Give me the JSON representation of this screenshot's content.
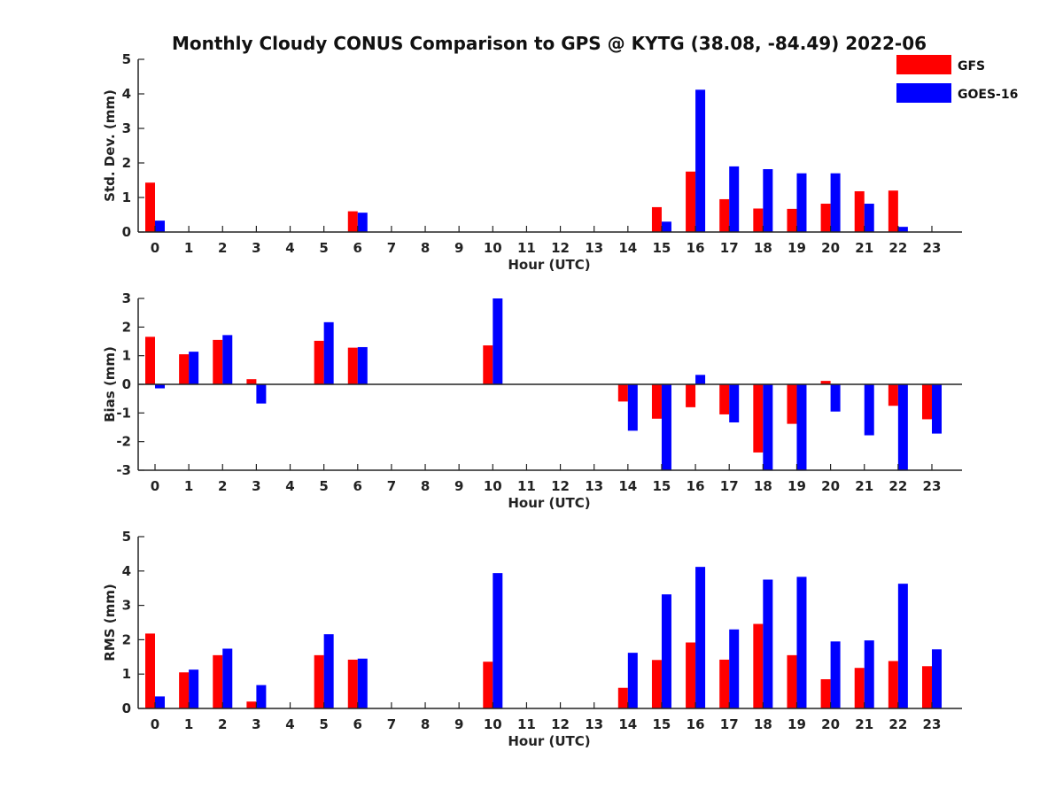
{
  "figure_title": "Monthly Cloudy CONUS Comparison to GPS @ KYTG (38.08, -84.49) 2022-06",
  "legend": [
    {
      "label": "GFS",
      "color": "#ff0000"
    },
    {
      "label": "GOES-16",
      "color": "#0000ff"
    }
  ],
  "chart_data": [
    {
      "type": "bar",
      "ylabel": "Std. Dev. (mm)",
      "xlabel": "Hour (UTC)",
      "ylim": [
        0,
        5
      ],
      "yticks": [
        0,
        1,
        2,
        3,
        4,
        5
      ],
      "categories": [
        "0",
        "1",
        "2",
        "3",
        "4",
        "5",
        "6",
        "7",
        "8",
        "9",
        "10",
        "11",
        "12",
        "13",
        "14",
        "15",
        "16",
        "17",
        "18",
        "19",
        "20",
        "21",
        "22",
        "23"
      ],
      "series": [
        {
          "name": "GFS",
          "values": [
            1.43,
            0,
            0,
            0,
            0,
            0,
            0.6,
            0,
            0,
            0,
            0,
            0,
            0,
            0,
            0,
            0.72,
            1.75,
            0.95,
            0.68,
            0.67,
            0.82,
            1.18,
            1.2,
            0
          ]
        },
        {
          "name": "GOES-16",
          "values": [
            0.33,
            0,
            0,
            0,
            0,
            0,
            0.56,
            0,
            0,
            0,
            0,
            0,
            0,
            0,
            0,
            0.3,
            4.12,
            1.9,
            1.82,
            1.7,
            1.7,
            0.82,
            0.15,
            0
          ]
        }
      ]
    },
    {
      "type": "bar",
      "ylabel": "Bias (mm)",
      "xlabel": "Hour (UTC)",
      "ylim": [
        -3,
        3
      ],
      "yticks": [
        -3,
        -2,
        -1,
        0,
        1,
        2,
        3
      ],
      "categories": [
        "0",
        "1",
        "2",
        "3",
        "4",
        "5",
        "6",
        "7",
        "8",
        "9",
        "10",
        "11",
        "12",
        "13",
        "14",
        "15",
        "16",
        "17",
        "18",
        "19",
        "20",
        "21",
        "22",
        "23"
      ],
      "series": [
        {
          "name": "GFS",
          "values": [
            1.66,
            1.05,
            1.55,
            0.18,
            0,
            1.52,
            1.28,
            0,
            0,
            0,
            1.36,
            0,
            0,
            0,
            -0.6,
            -1.2,
            -0.8,
            -1.05,
            -2.38,
            -1.38,
            0.12,
            0,
            -0.75,
            -1.22
          ]
        },
        {
          "name": "GOES-16",
          "values": [
            -0.14,
            1.14,
            1.72,
            -0.67,
            0,
            2.17,
            1.3,
            0,
            0,
            0,
            3.0,
            0,
            0,
            0,
            -1.62,
            -3.0,
            0.33,
            -1.33,
            -3.0,
            -3.0,
            -0.95,
            -1.78,
            -3.0,
            -1.72
          ]
        }
      ]
    },
    {
      "type": "bar",
      "ylabel": "RMS (mm)",
      "xlabel": "Hour (UTC)",
      "ylim": [
        0,
        5
      ],
      "yticks": [
        0,
        1,
        2,
        3,
        4,
        5
      ],
      "categories": [
        "0",
        "1",
        "2",
        "3",
        "4",
        "5",
        "6",
        "7",
        "8",
        "9",
        "10",
        "11",
        "12",
        "13",
        "14",
        "15",
        "16",
        "17",
        "18",
        "19",
        "20",
        "21",
        "22",
        "23"
      ],
      "series": [
        {
          "name": "GFS",
          "values": [
            2.18,
            1.05,
            1.55,
            0.2,
            0,
            1.55,
            1.42,
            0,
            0,
            0,
            1.36,
            0,
            0,
            0,
            0.6,
            1.41,
            1.92,
            1.42,
            2.46,
            1.55,
            0.85,
            1.18,
            1.38,
            1.23
          ]
        },
        {
          "name": "GOES-16",
          "values": [
            0.35,
            1.13,
            1.74,
            0.68,
            0,
            2.16,
            1.45,
            0,
            0,
            0,
            3.94,
            0,
            0,
            0,
            1.62,
            3.32,
            4.12,
            2.3,
            3.75,
            3.83,
            1.95,
            1.98,
            3.63,
            1.72
          ]
        }
      ]
    }
  ]
}
